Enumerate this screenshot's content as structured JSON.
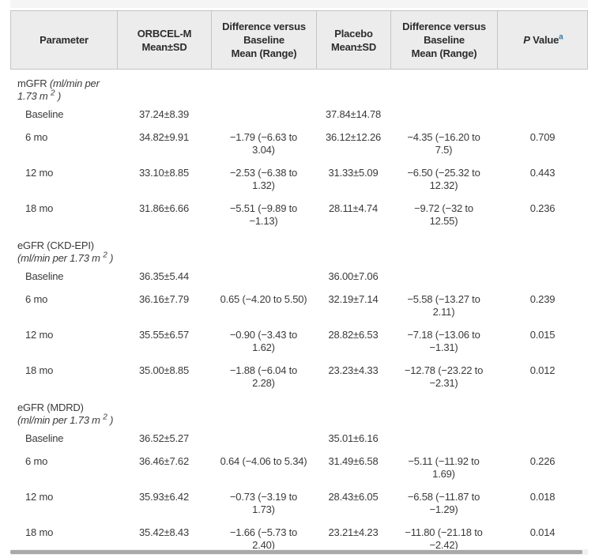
{
  "colors": {
    "header_bg": "#ececec",
    "header_border": "#c4c4c4",
    "text": "#3a3a3a",
    "footnote_accent": "#2b7bb0",
    "scrollbar_thumb": "#a9a9a9"
  },
  "table": {
    "columns": [
      {
        "lines": [
          "Parameter"
        ]
      },
      {
        "lines": [
          "ORBCEL-M",
          "Mean±SD"
        ]
      },
      {
        "lines": [
          "Difference versus",
          "Baseline",
          "Mean (Range)"
        ]
      },
      {
        "lines": [
          "Placebo",
          "Mean±SD"
        ]
      },
      {
        "lines": [
          "Difference versus",
          "Baseline",
          "Mean (Range)"
        ]
      },
      {
        "pre": "P",
        "label": " Value",
        "sup": "a"
      }
    ],
    "sections": [
      {
        "title_lines": [
          [
            {
              "t": "mGFR ",
              "i": false
            },
            {
              "t": "(ml/min per",
              "i": true
            }
          ],
          [
            {
              "t": "1.73 m ",
              "i": true
            },
            {
              "t": "2",
              "i": true,
              "sup": true
            },
            {
              "t": " )",
              "i": true
            }
          ]
        ],
        "rows": [
          {
            "param": "Baseline",
            "orbcel": "37.24±8.39",
            "diff": "",
            "placebo": "37.84±14.78",
            "diff2": "",
            "p": ""
          },
          {
            "param": "6 mo",
            "orbcel": "34.82±9.91",
            "diff": "−1.79 (−6.63 to 3.04)",
            "placebo": "36.12±12.26",
            "diff2": "−4.35 (−16.20 to 7.5)",
            "p": "0.709"
          },
          {
            "param": "12 mo",
            "orbcel": "33.10±8.85",
            "diff": "−2.53 (−6.38 to 1.32)",
            "placebo": "31.33±5.09",
            "diff2": "−6.50 (−25.32 to 12.32)",
            "p": "0.443"
          },
          {
            "param": "18 mo",
            "orbcel": "31.86±6.66",
            "diff": "−5.51 (−9.89 to −1.13)",
            "placebo": "28.11±4.74",
            "diff2": "−9.72 (−32 to 12.55)",
            "p": "0.236"
          }
        ]
      },
      {
        "title_lines": [
          [
            {
              "t": "eGFR (CKD-EPI)",
              "i": false
            }
          ],
          [
            {
              "t": "(ml/min per 1.73 m ",
              "i": true
            },
            {
              "t": "2",
              "i": true,
              "sup": true
            },
            {
              "t": " )",
              "i": true
            }
          ]
        ],
        "rows": [
          {
            "param": "Baseline",
            "orbcel": "36.35±5.44",
            "diff": "",
            "placebo": "36.00±7.06",
            "diff2": "",
            "p": ""
          },
          {
            "param": "6 mo",
            "orbcel": "36.16±7.79",
            "diff": "0.65 (−4.20 to 5.50)",
            "placebo": "32.19±7.14",
            "diff2": "−5.58 (−13.27 to 2.11)",
            "p": "0.239"
          },
          {
            "param": "12 mo",
            "orbcel": "35.55±6.57",
            "diff": "−0.90 (−3.43 to 1.62)",
            "placebo": "28.82±6.53",
            "diff2": "−7.18 (−13.06 to −1.31)",
            "p": "0.015"
          },
          {
            "param": "18 mo",
            "orbcel": "35.00±8.85",
            "diff": "−1.88 (−6.04 to 2.28)",
            "placebo": "23.23±4.33",
            "diff2": "−12.78 (−23.22 to −2.31)",
            "p": "0.012"
          }
        ]
      },
      {
        "title_lines": [
          [
            {
              "t": "eGFR (MDRD)",
              "i": false
            }
          ],
          [
            {
              "t": "(ml/min per 1.73 m ",
              "i": true
            },
            {
              "t": "2",
              "i": true,
              "sup": true
            },
            {
              "t": " )",
              "i": true
            }
          ]
        ],
        "rows": [
          {
            "param": "Baseline",
            "orbcel": "36.52±5.27",
            "diff": "",
            "placebo": "35.01±6.16",
            "diff2": "",
            "p": ""
          },
          {
            "param": "6 mo",
            "orbcel": "36.46±7.62",
            "diff": "0.64 (−4.06 to 5.34)",
            "placebo": "31.49±6.58",
            "diff2": "−5.11 (−11.92 to 1.69)",
            "p": "0.226"
          },
          {
            "param": "12 mo",
            "orbcel": "35.93±6.42",
            "diff": "−0.73 (−3.19 to 1.73)",
            "placebo": "28.43±6.05",
            "diff2": "−6.58 (−11.87 to −1.29)",
            "p": "0.018"
          },
          {
            "param": "18 mo",
            "orbcel": "35.42±8.43",
            "diff": "−1.66 (−5.73 to 2.40)",
            "placebo": "23.21±4.23",
            "diff2": "−11.80 (−21.18 to −2.42)",
            "p": "0.014"
          }
        ]
      }
    ]
  }
}
